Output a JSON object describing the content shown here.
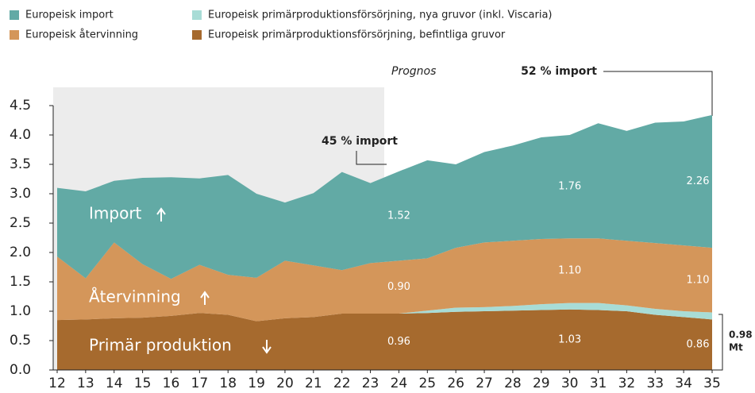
{
  "chart_data": {
    "type": "stacked-area",
    "categories": [
      "12",
      "13",
      "14",
      "15",
      "16",
      "17",
      "18",
      "19",
      "20",
      "21",
      "22",
      "23",
      "24",
      "25",
      "26",
      "27",
      "28",
      "29",
      "30",
      "31",
      "32",
      "33",
      "34",
      "35"
    ],
    "series": [
      {
        "name": "Europeisk primärproduktionsförsörjning, befintliga gruvor",
        "color": "#a66a2e",
        "values": [
          0.85,
          0.86,
          0.88,
          0.89,
          0.92,
          0.97,
          0.94,
          0.83,
          0.88,
          0.9,
          0.96,
          0.96,
          0.96,
          0.97,
          0.99,
          1.0,
          1.01,
          1.02,
          1.03,
          1.02,
          1.0,
          0.94,
          0.9,
          0.86
        ],
        "value_labels": [
          null,
          null,
          null,
          null,
          null,
          null,
          null,
          null,
          null,
          null,
          null,
          null,
          "0.96",
          null,
          null,
          null,
          null,
          null,
          "1.03",
          null,
          null,
          null,
          null,
          "0.86"
        ]
      },
      {
        "name": "Europeisk primärproduktionsförsörjning, nya gruvor (inkl. Viscaria)",
        "color": "#a8dcd6",
        "values": [
          0,
          0,
          0,
          0,
          0,
          0,
          0,
          0,
          0,
          0,
          0,
          0,
          0,
          0.04,
          0.07,
          0.07,
          0.08,
          0.1,
          0.11,
          0.12,
          0.1,
          0.1,
          0.1,
          0.12
        ]
      },
      {
        "name": "Europeisk återvinning",
        "color": "#d4965a",
        "values": [
          1.08,
          0.7,
          1.29,
          0.91,
          0.63,
          0.82,
          0.68,
          0.74,
          0.98,
          0.88,
          0.74,
          0.86,
          0.9,
          0.89,
          1.02,
          1.1,
          1.11,
          1.11,
          1.1,
          1.1,
          1.1,
          1.12,
          1.12,
          1.1
        ],
        "value_labels": [
          null,
          null,
          null,
          null,
          null,
          null,
          null,
          null,
          null,
          null,
          null,
          null,
          "0.90",
          null,
          null,
          null,
          null,
          null,
          "1.10",
          null,
          null,
          null,
          null,
          "1.10"
        ]
      },
      {
        "name": "Europeisk import",
        "color": "#62aaa5",
        "values": [
          1.17,
          1.48,
          1.05,
          1.47,
          1.73,
          1.47,
          1.7,
          1.43,
          0.99,
          1.23,
          1.67,
          1.36,
          1.52,
          1.67,
          1.42,
          1.54,
          1.62,
          1.73,
          1.76,
          1.96,
          1.87,
          2.05,
          2.11,
          2.26
        ],
        "value_labels": [
          null,
          null,
          null,
          null,
          null,
          null,
          null,
          null,
          null,
          null,
          null,
          null,
          "1.52",
          null,
          null,
          null,
          null,
          null,
          "1.76",
          null,
          null,
          null,
          null,
          "2.26"
        ]
      }
    ],
    "ylim": [
      0,
      4.5
    ],
    "yticks": [
      {
        "value": 0,
        "label": "0.0"
      },
      0.5,
      {
        "value": 1,
        "label": "1.0"
      },
      1.5,
      {
        "value": 2,
        "label": "2.0"
      },
      2.5,
      {
        "value": 3,
        "label": "3.0"
      },
      3.5,
      {
        "value": 4,
        "label": "4.0"
      },
      4.5
    ],
    "annotations": {
      "forecast": "Prognos",
      "import_2023": "45 % import",
      "import_2035": "52 % import",
      "area_import": "Import",
      "area_recycling": "Återvinning",
      "area_primary": "Primär produktion",
      "bracket_label_lines": [
        "0.98",
        "Mt"
      ]
    }
  }
}
